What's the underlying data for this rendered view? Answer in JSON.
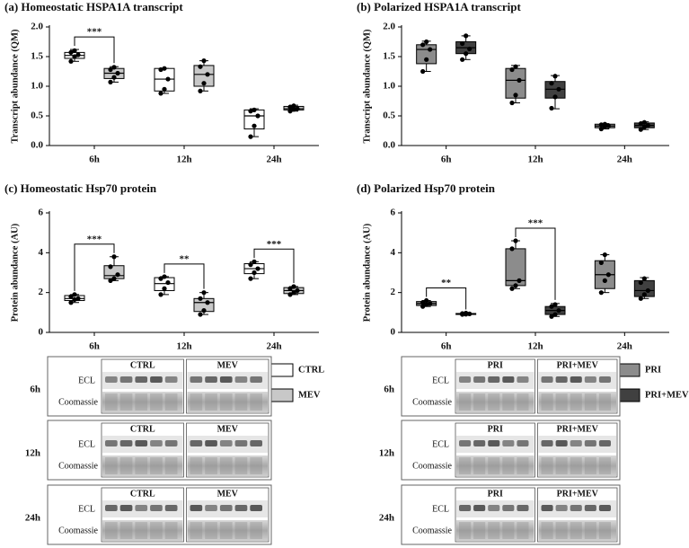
{
  "chart_data": [
    {
      "type": "box",
      "title": "(a) Homeostatic HSPA1A transcript",
      "ylabel": "Transcript abundance (QM)",
      "categories": [
        "6h",
        "12h",
        "24h"
      ],
      "ylim": [
        0,
        2
      ],
      "yticks": [
        {
          "value": 0,
          "label": "0.0"
        },
        0.5,
        {
          "value": 1,
          "label": "1.0"
        },
        1.5,
        {
          "value": 2,
          "label": "2.0"
        }
      ],
      "annotations": [
        "***",
        null,
        null
      ],
      "series": [
        {
          "name": "CTRL",
          "color": "#ffffff",
          "min": [
            1.42,
            0.88,
            0.15
          ],
          "q1": [
            1.47,
            0.92,
            0.28
          ],
          "median": [
            1.52,
            1.12,
            0.5
          ],
          "q3": [
            1.57,
            1.3,
            0.6
          ],
          "max": [
            1.62,
            1.3,
            0.62
          ],
          "points": [
            [
              1.42,
              1.5,
              1.53,
              1.57,
              1.6
            ],
            [
              0.88,
              0.95,
              1.12,
              1.28,
              1.3
            ],
            [
              0.15,
              0.33,
              0.5,
              0.58,
              0.6
            ]
          ]
        },
        {
          "name": "MEV",
          "color": "#c8c8c8",
          "min": [
            1.07,
            0.92,
            0.58
          ],
          "q1": [
            1.13,
            1.0,
            0.6
          ],
          "median": [
            1.22,
            1.2,
            0.62
          ],
          "q3": [
            1.3,
            1.35,
            0.66
          ],
          "max": [
            1.33,
            1.43,
            0.68
          ],
          "points": [
            [
              1.07,
              1.15,
              1.22,
              1.28,
              1.32
            ],
            [
              0.92,
              1.05,
              1.2,
              1.33,
              1.43
            ],
            [
              0.58,
              0.61,
              0.62,
              0.65,
              0.67
            ]
          ]
        }
      ]
    },
    {
      "type": "box",
      "title": "(b) Polarized HSPA1A transcript",
      "ylabel": "Transcript abundance (QM)",
      "categories": [
        "6h",
        "12h",
        "24h"
      ],
      "ylim": [
        0,
        2
      ],
      "yticks": [
        {
          "value": 0,
          "label": "0.0"
        },
        0.5,
        {
          "value": 1,
          "label": "1.0"
        },
        1.5,
        {
          "value": 2,
          "label": "2.0"
        }
      ],
      "annotations": [
        null,
        null,
        null
      ],
      "series": [
        {
          "name": "PRI",
          "color": "#8c8c8c",
          "min": [
            1.25,
            0.72,
            0.28
          ],
          "q1": [
            1.38,
            0.8,
            0.3
          ],
          "median": [
            1.62,
            1.1,
            0.33
          ],
          "q3": [
            1.7,
            1.3,
            0.36
          ],
          "max": [
            1.76,
            1.35,
            0.37
          ],
          "points": [
            [
              1.25,
              1.45,
              1.62,
              1.7,
              1.75
            ],
            [
              0.72,
              0.85,
              1.1,
              1.28,
              1.33
            ],
            [
              0.28,
              0.32,
              0.33,
              0.35,
              0.36
            ]
          ]
        },
        {
          "name": "PRI+MEV",
          "color": "#404040",
          "min": [
            1.45,
            0.62,
            0.27
          ],
          "q1": [
            1.55,
            0.8,
            0.3
          ],
          "median": [
            1.65,
            0.95,
            0.34
          ],
          "q3": [
            1.75,
            1.08,
            0.38
          ],
          "max": [
            1.85,
            1.18,
            0.4
          ],
          "points": [
            [
              1.45,
              1.55,
              1.63,
              1.72,
              1.85
            ],
            [
              0.63,
              0.82,
              0.95,
              1.05,
              1.17
            ],
            [
              0.27,
              0.31,
              0.34,
              0.37,
              0.39
            ]
          ]
        }
      ]
    },
    {
      "type": "box",
      "title": "(c) Homeostatic Hsp70 protein",
      "ylabel": "Protein abundance (AU)",
      "categories": [
        "6h",
        "12h",
        "24h"
      ],
      "ylim": [
        0,
        6
      ],
      "yticks": [
        0,
        2,
        4,
        6
      ],
      "legend": "right",
      "annotations": [
        "***",
        "**",
        "***"
      ],
      "series": [
        {
          "name": "CTRL",
          "color": "#ffffff",
          "min": [
            1.5,
            1.9,
            2.7
          ],
          "q1": [
            1.6,
            2.1,
            2.95
          ],
          "median": [
            1.7,
            2.45,
            3.2
          ],
          "q3": [
            1.85,
            2.75,
            3.45
          ],
          "max": [
            1.9,
            2.8,
            3.55
          ],
          "points": [
            [
              1.5,
              1.65,
              1.7,
              1.8,
              1.9
            ],
            [
              1.9,
              2.2,
              2.5,
              2.7,
              2.8
            ],
            [
              2.7,
              3.0,
              3.2,
              3.4,
              3.55
            ]
          ]
        },
        {
          "name": "MEV",
          "color": "#c8c8c8",
          "min": [
            2.6,
            0.9,
            1.9
          ],
          "q1": [
            2.7,
            1.05,
            1.95
          ],
          "median": [
            2.85,
            1.5,
            2.1
          ],
          "q3": [
            3.35,
            1.7,
            2.25
          ],
          "max": [
            3.8,
            2.0,
            2.3
          ],
          "points": [
            [
              2.6,
              2.7,
              2.9,
              3.3,
              3.8
            ],
            [
              0.9,
              1.1,
              1.5,
              1.7,
              2.0
            ],
            [
              1.9,
              2.0,
              2.1,
              2.2,
              2.3
            ]
          ]
        }
      ]
    },
    {
      "type": "box",
      "title": "(d) Polarized Hsp70 protein",
      "ylabel": "Protein abundance (AU)",
      "categories": [
        "6h",
        "12h",
        "24h"
      ],
      "ylim": [
        0,
        6
      ],
      "yticks": [
        0,
        2,
        4,
        6
      ],
      "legend": "right",
      "annotations": [
        "**",
        "***",
        null
      ],
      "series": [
        {
          "name": "PRI",
          "color": "#8c8c8c",
          "min": [
            1.3,
            2.2,
            2.0
          ],
          "q1": [
            1.35,
            2.35,
            2.2
          ],
          "median": [
            1.45,
            2.6,
            2.9
          ],
          "q3": [
            1.55,
            4.2,
            3.6
          ],
          "max": [
            1.6,
            4.6,
            3.9
          ],
          "points": [
            [
              1.3,
              1.4,
              1.45,
              1.5,
              1.6
            ],
            [
              2.2,
              2.35,
              2.6,
              4.2,
              4.6
            ],
            [
              2.0,
              2.6,
              2.9,
              3.5,
              3.9
            ]
          ]
        },
        {
          "name": "PRI+MEV",
          "color": "#404040",
          "min": [
            0.9,
            0.8,
            1.7
          ],
          "q1": [
            0.9,
            0.9,
            1.8
          ],
          "median": [
            0.93,
            1.1,
            2.1
          ],
          "q3": [
            0.95,
            1.3,
            2.6
          ],
          "max": [
            0.97,
            1.45,
            2.75
          ],
          "points": [
            [
              0.9,
              0.91,
              0.93,
              0.95,
              0.97
            ],
            [
              0.8,
              0.9,
              1.1,
              1.3,
              1.4
            ],
            [
              1.7,
              1.9,
              2.1,
              2.5,
              2.7
            ]
          ]
        }
      ]
    }
  ],
  "blots": {
    "left": [
      {
        "time": "6h",
        "conditions": [
          "CTRL",
          "MEV"
        ],
        "ecl": "ECL",
        "stain": "Coomassie"
      },
      {
        "time": "12h",
        "conditions": [
          "CTRL",
          "MEV"
        ],
        "ecl": "ECL",
        "stain": "Coomassie"
      },
      {
        "time": "24h",
        "conditions": [
          "CTRL",
          "MEV"
        ],
        "ecl": "ECL",
        "stain": "Coomassie"
      }
    ],
    "right": [
      {
        "time": "6h",
        "conditions": [
          "PRI",
          "PRI+MEV"
        ],
        "ecl": "ECL",
        "stain": "Coomassie"
      },
      {
        "time": "12h",
        "conditions": [
          "PRI",
          "PRI+MEV"
        ],
        "ecl": "ECL",
        "stain": "Coomassie"
      },
      {
        "time": "24h",
        "conditions": [
          "PRI",
          "PRI+MEV"
        ],
        "ecl": "ECL",
        "stain": "Coomassie"
      }
    ]
  }
}
